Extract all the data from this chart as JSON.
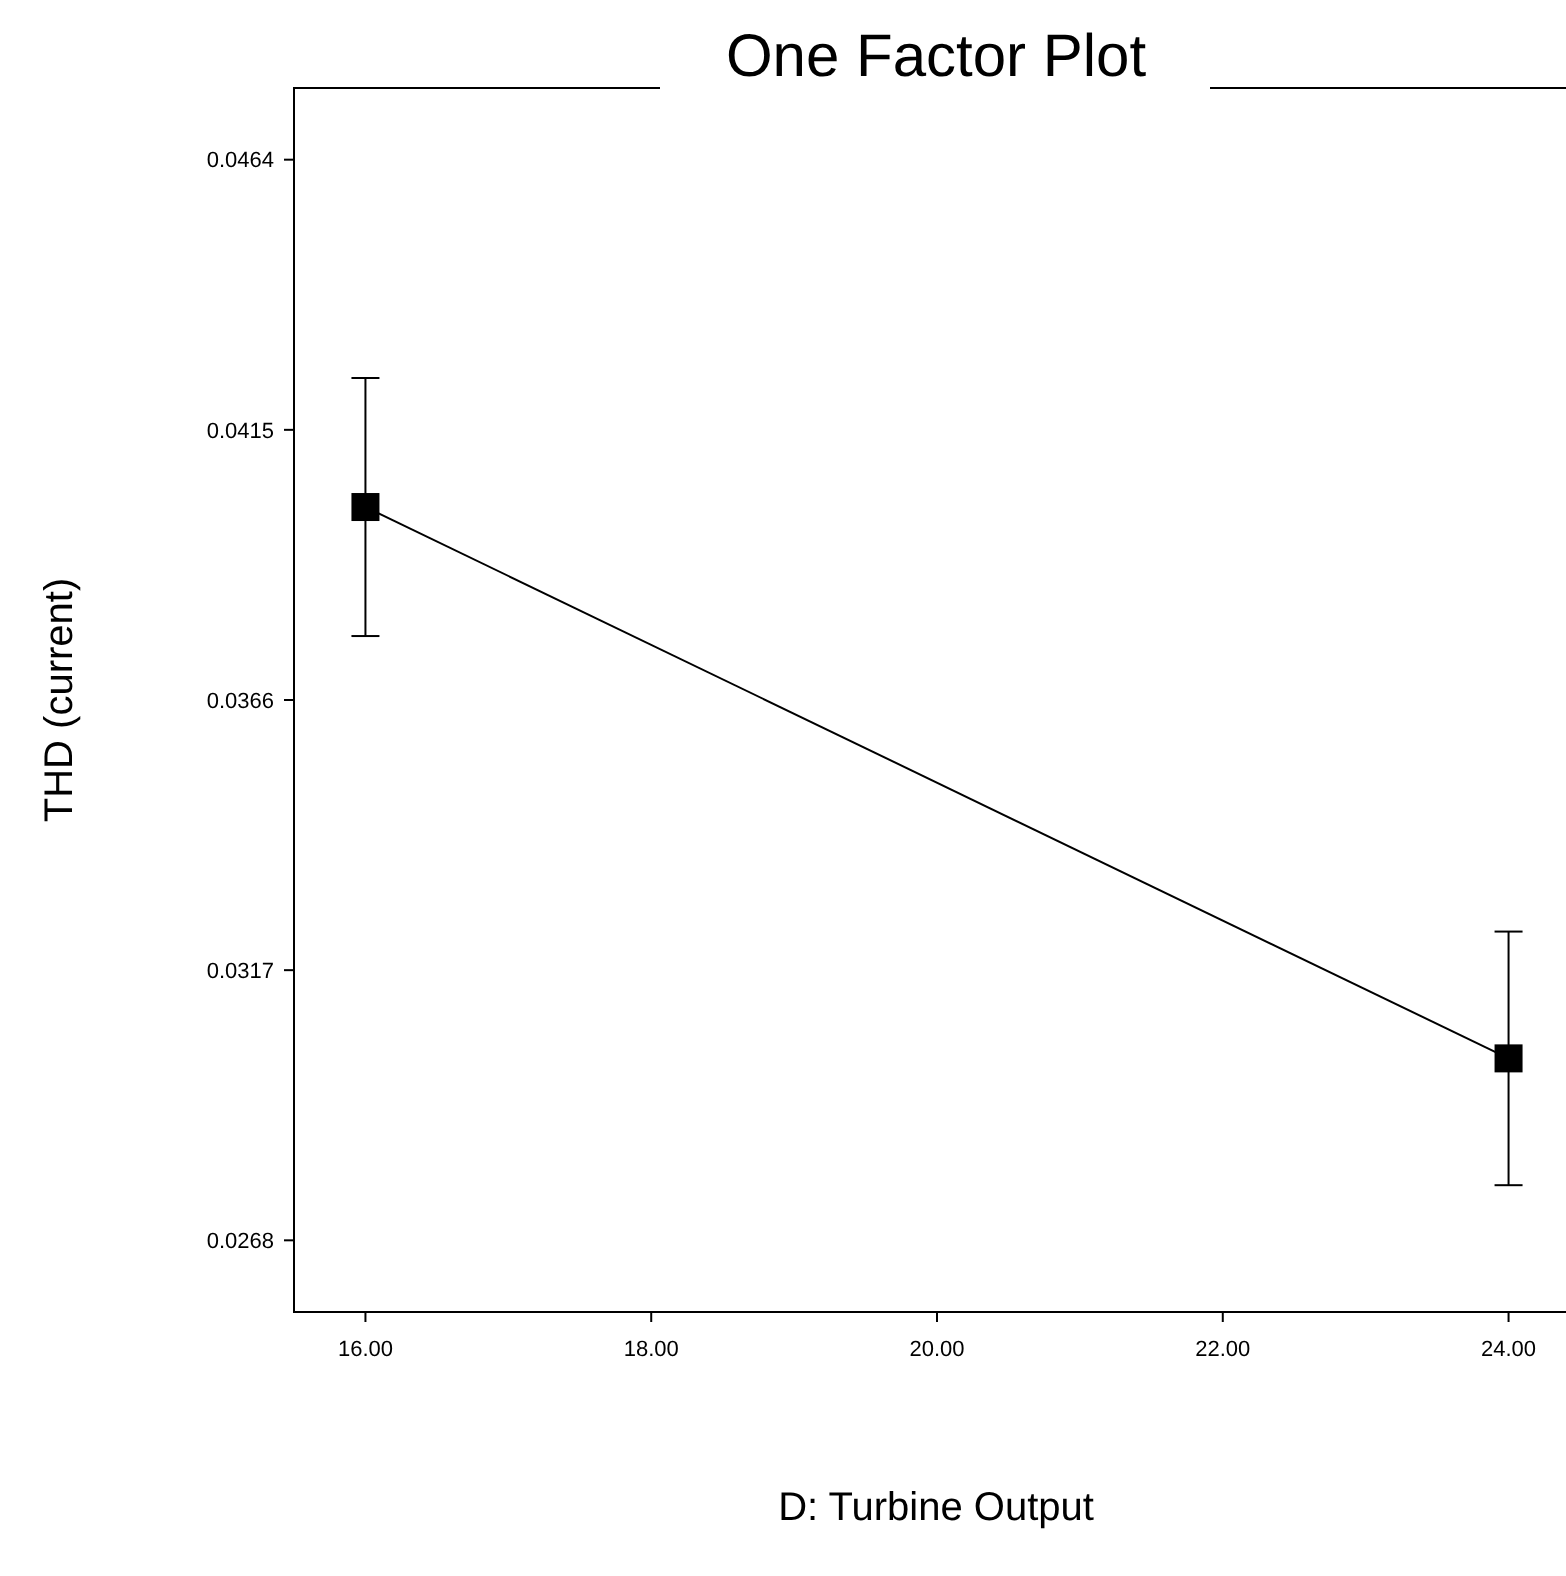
{
  "chart_data": {
    "type": "line",
    "title": "One Factor Plot",
    "xlabel": "D: Turbine Output",
    "ylabel": "THD (current)",
    "x": [
      16,
      24
    ],
    "series": [
      {
        "color": "#000000",
        "values": [
          0.0401,
          0.0301
        ],
        "errors": [
          0.00234,
          0.0023
        ]
      }
    ],
    "xlim": [
      15.5,
      24.5
    ],
    "xticks": [
      {
        "value": 16,
        "label": "16.00"
      },
      {
        "value": 18,
        "label": "18.00"
      },
      {
        "value": 20,
        "label": "20.00"
      },
      {
        "value": 22,
        "label": "22.00"
      },
      {
        "value": 24,
        "label": "24.00"
      }
    ],
    "ylim": [
      0.0255,
      0.0477
    ],
    "yticks": [
      0.0268,
      0.0317,
      0.0366,
      0.0415,
      0.0464
    ],
    "grid": false,
    "marker": "square",
    "line_style": "solid"
  }
}
